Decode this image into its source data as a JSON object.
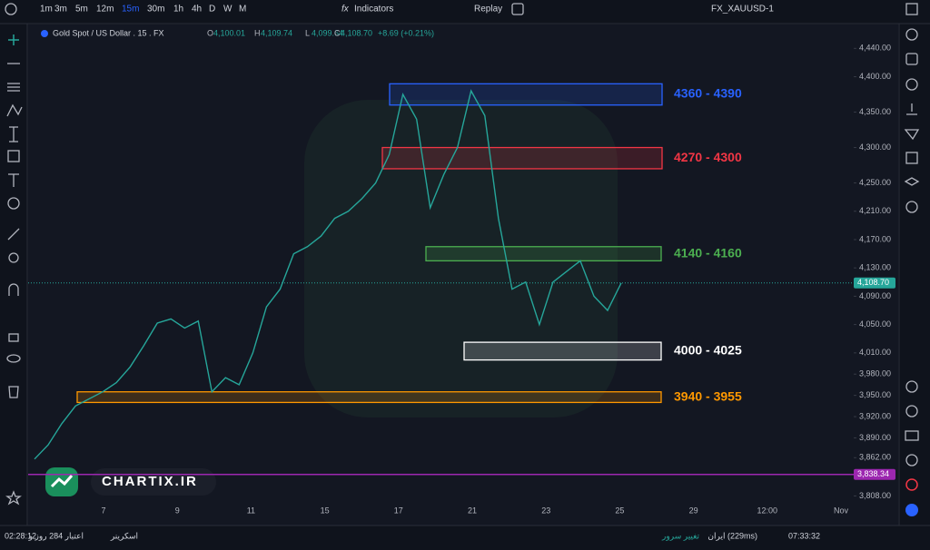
{
  "toolbar": {
    "intervals": [
      "1m",
      "3m",
      "5m",
      "12m",
      "15m",
      "30m",
      "1h",
      "4h",
      "D",
      "W",
      "M"
    ],
    "active_interval": "15m",
    "indicators": "Indicators",
    "replay": "Replay",
    "symbol": "FX_XAUUSD-1"
  },
  "legend": {
    "symbol": "Gold Spot / US Dollar . 15 . FX",
    "o_label": "O",
    "open": "4,100.01",
    "h_label": "H",
    "high": "4,109.74",
    "l_label": "L",
    "low": "4,099.64",
    "c_label": "C",
    "close": "4,108.70",
    "change": "+8.69 (+0.21%)"
  },
  "watermark": "CHARTIX.IR",
  "status_bar": {
    "session_time": "02:28:12",
    "credit": "اعتبار 284 روز و",
    "screener": "اسکرینر",
    "change_server": "تغییر سرور",
    "server": "ایران (229ms)",
    "clock": "07:33:32"
  },
  "chart_data": {
    "type": "line",
    "color": "#26a69a",
    "values": [
      3860,
      3880,
      3910,
      3935,
      3945,
      3955,
      3968,
      3990,
      4020,
      4052,
      4058,
      4045,
      4055,
      3955,
      3975,
      3965,
      4010,
      4075,
      4100,
      4150,
      4160,
      4175,
      4200,
      4210,
      4228,
      4250,
      4290,
      4375,
      4340,
      4215,
      4262,
      4300,
      4380,
      4345,
      4200,
      4100,
      4110,
      4050,
      4110,
      4125,
      4140,
      4090,
      4070,
      4108.7
    ],
    "x_labels": [
      "7",
      "9",
      "11",
      "15",
      "17",
      "21",
      "23",
      "25",
      "29",
      "12:00",
      "Nov"
    ],
    "ylim": [
      3797,
      4475
    ],
    "yticks": [
      {
        "value": 4440,
        "label": "4,440.00"
      },
      {
        "value": 4400,
        "label": "4,400.00"
      },
      {
        "value": 4350,
        "label": "4,350.00"
      },
      {
        "value": 4300,
        "label": "4,300.00"
      },
      {
        "value": 4250,
        "label": "4,250.00"
      },
      {
        "value": 4210,
        "label": "4,210.00"
      },
      {
        "value": 4170,
        "label": "4,170.00"
      },
      {
        "value": 4130,
        "label": "4,130.00"
      },
      {
        "value": 4090,
        "label": "4,090.00"
      },
      {
        "value": 4050,
        "label": "4,050.00"
      },
      {
        "value": 4010,
        "label": "4,010.00"
      },
      {
        "value": 3980,
        "label": "3,980.00"
      },
      {
        "value": 3950,
        "label": "3,950.00"
      },
      {
        "value": 3920,
        "label": "3,920.00"
      },
      {
        "value": 3890,
        "label": "3,890.00"
      },
      {
        "value": 3862,
        "label": "3,862.00"
      },
      {
        "value": 3808,
        "label": "3,808.00"
      }
    ],
    "last_price": {
      "value": 4108.7,
      "label": "4,108.70",
      "color": "#26a69a"
    },
    "level_line": {
      "value": 3838.34,
      "label": "3,838.34",
      "color": "#9c27b0"
    },
    "zones": [
      {
        "label": "4360 - 4390",
        "low": 4360,
        "high": 4390,
        "color": "#2962ff"
      },
      {
        "label": "4270 - 4300",
        "low": 4270,
        "high": 4300,
        "color": "#f23645"
      },
      {
        "label": "4140 - 4160",
        "low": 4140,
        "high": 4160,
        "color": "#4caf50"
      },
      {
        "label": "4000 - 4025",
        "low": 4000,
        "high": 4025,
        "color": "#ffffff"
      },
      {
        "label": "3940 - 3955",
        "low": 3940,
        "high": 3955,
        "color": "#ff9800"
      }
    ]
  }
}
